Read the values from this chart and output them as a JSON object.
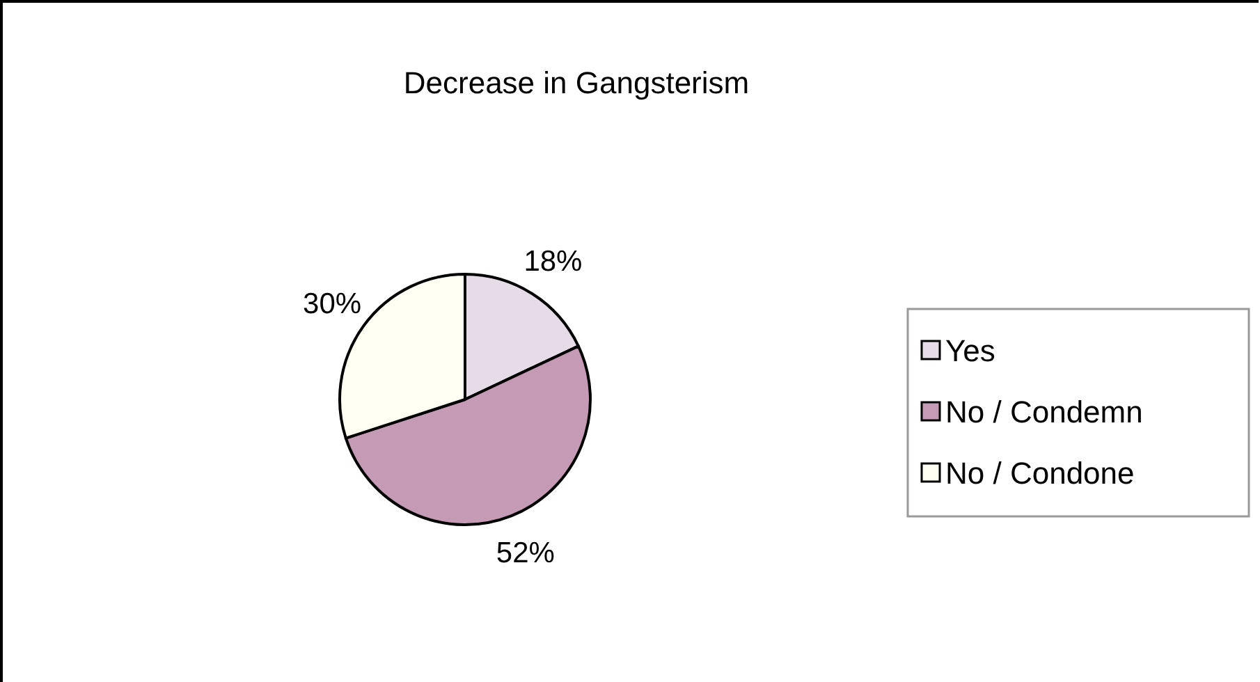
{
  "chart_data": {
    "type": "pie",
    "title": "Decrease in Gangsterism",
    "categories": [
      "Yes",
      "No / Condemn",
      "No / Condone"
    ],
    "values": [
      18,
      52,
      30
    ],
    "colors": [
      "#e6dce8",
      "#c49ab4",
      "#fffff4"
    ],
    "value_labels": [
      "18%",
      "52%",
      "30%"
    ],
    "legend": "right"
  }
}
